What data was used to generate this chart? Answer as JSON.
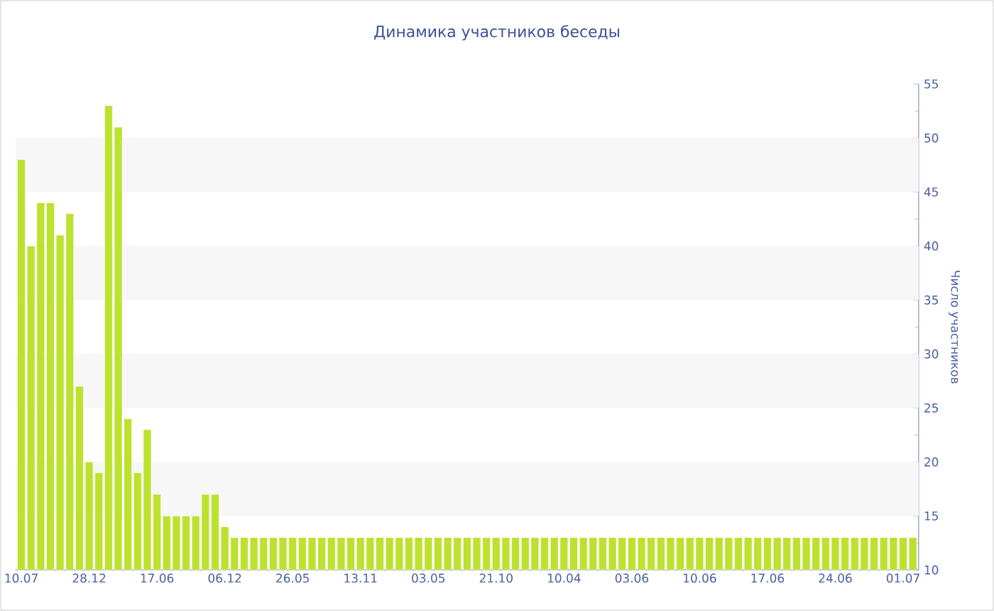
{
  "chart_data": {
    "type": "bar",
    "title": "Динамика участников беседы",
    "ylabel": "Число участников",
    "color": "#bde12f",
    "categories": [
      "10.07",
      null,
      null,
      null,
      null,
      null,
      null,
      "28.12",
      null,
      null,
      null,
      null,
      null,
      null,
      "17.06",
      null,
      null,
      null,
      null,
      null,
      null,
      "06.12",
      null,
      null,
      null,
      null,
      null,
      null,
      "26.05",
      null,
      null,
      null,
      null,
      null,
      null,
      "13.11",
      null,
      null,
      null,
      null,
      null,
      null,
      "03.05",
      null,
      null,
      null,
      null,
      null,
      null,
      "21.10",
      null,
      null,
      null,
      null,
      null,
      null,
      "10.04",
      null,
      null,
      null,
      null,
      null,
      null,
      "03.06",
      null,
      null,
      null,
      null,
      null,
      null,
      "10.06",
      null,
      null,
      null,
      null,
      null,
      null,
      "17.06",
      null,
      null,
      null,
      null,
      null,
      null,
      "24.06",
      null,
      null,
      null,
      null,
      null,
      null,
      "01.07",
      null
    ],
    "values": [
      48,
      40,
      44,
      44,
      41,
      43,
      27,
      20,
      19,
      53,
      51,
      24,
      19,
      23,
      17,
      15,
      15,
      15,
      15,
      17,
      17,
      14,
      13,
      13,
      13,
      13,
      13,
      13,
      13,
      13,
      13,
      13,
      13,
      13,
      13,
      13,
      13,
      13,
      13,
      13,
      13,
      13,
      13,
      13,
      13,
      13,
      13,
      13,
      13,
      13,
      13,
      13,
      13,
      13,
      13,
      13,
      13,
      13,
      13,
      13,
      13,
      13,
      13,
      13,
      13,
      13,
      13,
      13,
      13,
      13,
      13,
      13,
      13,
      13,
      13,
      13,
      13,
      13,
      13,
      13,
      13,
      13,
      13,
      13,
      13,
      13,
      13,
      13,
      13,
      13,
      13,
      13,
      13
    ],
    "ylim": [
      10,
      55
    ],
    "yticks": [
      10,
      15,
      20,
      25,
      30,
      35,
      40,
      45,
      50,
      55
    ],
    "bands": [
      {
        "axis": "y",
        "from": 15,
        "to": 20,
        "color": "#f7f7f7"
      },
      {
        "axis": "y",
        "from": 25,
        "to": 30,
        "color": "#f7f7f7"
      },
      {
        "axis": "y",
        "from": 35,
        "to": 40,
        "color": "#f7f7f7"
      },
      {
        "axis": "y",
        "from": 45,
        "to": 50,
        "color": "#f7f7f7"
      }
    ],
    "grid": false
  }
}
